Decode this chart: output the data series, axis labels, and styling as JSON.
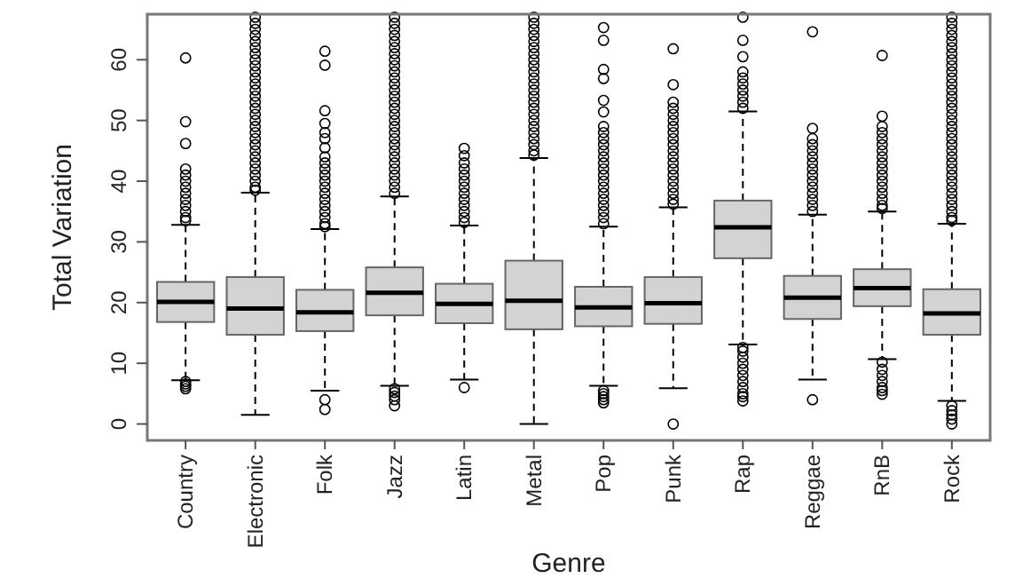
{
  "chart_data": {
    "type": "box",
    "xlabel": "Genre",
    "ylabel": "Total Variation",
    "color": "#d3d3d3",
    "categories": [
      "Country",
      "Electronic",
      "Folk",
      "Jazz",
      "Latin",
      "Metal",
      "Pop",
      "Punk",
      "Rap",
      "Reggae",
      "RnB",
      "Rock"
    ],
    "ylim": [
      -2.7,
      67.5
    ],
    "yticks": [
      0,
      10,
      20,
      30,
      40,
      50,
      60
    ],
    "boxes": [
      {
        "low": 7.2,
        "q1": 16.8,
        "median": 20.1,
        "q3": 23.4,
        "high": 32.8,
        "outliers": [
          5.8,
          6.2,
          6.6,
          7,
          33.5,
          34,
          35,
          36,
          37,
          38,
          39,
          40,
          41,
          42,
          46.2,
          49.8,
          60.3
        ]
      },
      {
        "low": 1.5,
        "q1": 14.7,
        "median": 19,
        "q3": 24.2,
        "high": 38.1,
        "outliers": [
          38.5,
          39,
          40,
          41,
          42,
          43,
          44,
          45,
          46,
          47,
          48,
          49,
          50,
          51,
          52,
          53,
          54,
          55,
          56,
          57,
          58,
          59,
          60,
          61,
          62,
          63,
          64,
          65,
          66,
          67
        ]
      },
      {
        "low": 5.5,
        "q1": 15.3,
        "median": 18.4,
        "q3": 22.1,
        "high": 32.1,
        "outliers": [
          2.4,
          4,
          32.5,
          33,
          34,
          35,
          36,
          37,
          38,
          39,
          40,
          41,
          42,
          43,
          44,
          45.5,
          47,
          48,
          49.5,
          51.6,
          59.1,
          61.4
        ]
      },
      {
        "low": 6.3,
        "q1": 17.9,
        "median": 21.6,
        "q3": 25.8,
        "high": 37.5,
        "outliers": [
          3,
          4,
          4.6,
          5.2,
          5.8,
          38,
          39,
          40,
          41,
          42,
          43,
          44,
          45,
          46,
          47,
          48,
          49,
          50,
          51,
          52,
          53,
          54,
          55,
          56,
          57,
          58,
          59,
          60,
          61,
          62,
          63,
          64,
          65,
          66,
          67
        ]
      },
      {
        "low": 7.3,
        "q1": 16.6,
        "median": 19.8,
        "q3": 23.1,
        "high": 32.7,
        "outliers": [
          6,
          33.2,
          34,
          35,
          36,
          37,
          38,
          39,
          40,
          41,
          42,
          43,
          44.2,
          45.4
        ]
      },
      {
        "low": 0,
        "q1": 15.6,
        "median": 20.3,
        "q3": 26.9,
        "high": 43.8,
        "outliers": [
          44.3,
          45,
          46,
          47,
          48,
          49,
          50,
          51,
          52,
          53,
          54,
          55,
          56,
          57,
          58,
          59,
          60,
          61,
          62,
          63,
          64,
          65,
          66,
          67
        ]
      },
      {
        "low": 6.3,
        "q1": 16.1,
        "median": 19.2,
        "q3": 22.6,
        "high": 32.5,
        "outliers": [
          3.5,
          4,
          4.5,
          5,
          5.5,
          33,
          34,
          35,
          36,
          37,
          38,
          39,
          40,
          41,
          42,
          43,
          44,
          45,
          46,
          47,
          48,
          49,
          51.4,
          53.3,
          56.9,
          58.4,
          63.2,
          65.3
        ]
      },
      {
        "low": 5.9,
        "q1": 16.5,
        "median": 19.9,
        "q3": 24.2,
        "high": 35.7,
        "outliers": [
          0,
          36.2,
          37,
          38,
          39,
          40,
          41,
          42,
          43,
          44,
          45,
          46,
          47,
          48,
          49,
          50,
          51,
          52,
          53,
          55.9,
          61.8
        ]
      },
      {
        "low": 13.1,
        "q1": 27.3,
        "median": 32.4,
        "q3": 36.8,
        "high": 51.5,
        "outliers": [
          3.8,
          4.5,
          5,
          6,
          7,
          8,
          9,
          10,
          11,
          12,
          12.6,
          52,
          53,
          54,
          55,
          56,
          57,
          58,
          60.5,
          63.2,
          67
        ]
      },
      {
        "low": 7.3,
        "q1": 17.3,
        "median": 20.8,
        "q3": 24.4,
        "high": 34.5,
        "outliers": [
          4,
          35,
          36,
          37,
          38,
          39,
          40,
          41,
          42,
          43,
          44,
          45,
          46,
          47,
          48.7,
          64.6
        ]
      },
      {
        "low": 10.7,
        "q1": 19.4,
        "median": 22.4,
        "q3": 25.5,
        "high": 35,
        "outliers": [
          4.9,
          5.5,
          6,
          7,
          8,
          9,
          10.2,
          35.5,
          36,
          37,
          38,
          39,
          40,
          41,
          42,
          43,
          44,
          45,
          46,
          47,
          48,
          49,
          50.7,
          60.7
        ]
      },
      {
        "low": 3.8,
        "q1": 14.7,
        "median": 18.2,
        "q3": 22.2,
        "high": 33,
        "outliers": [
          0,
          0.8,
          1.5,
          2.2,
          3,
          33.5,
          34,
          35,
          36,
          37,
          38,
          39,
          40,
          41,
          42,
          43,
          44,
          45,
          46,
          47,
          48,
          49,
          50,
          51,
          52,
          53,
          54,
          55,
          56,
          57,
          58,
          59,
          60,
          61,
          62,
          63,
          64,
          65,
          66,
          67
        ]
      }
    ]
  }
}
